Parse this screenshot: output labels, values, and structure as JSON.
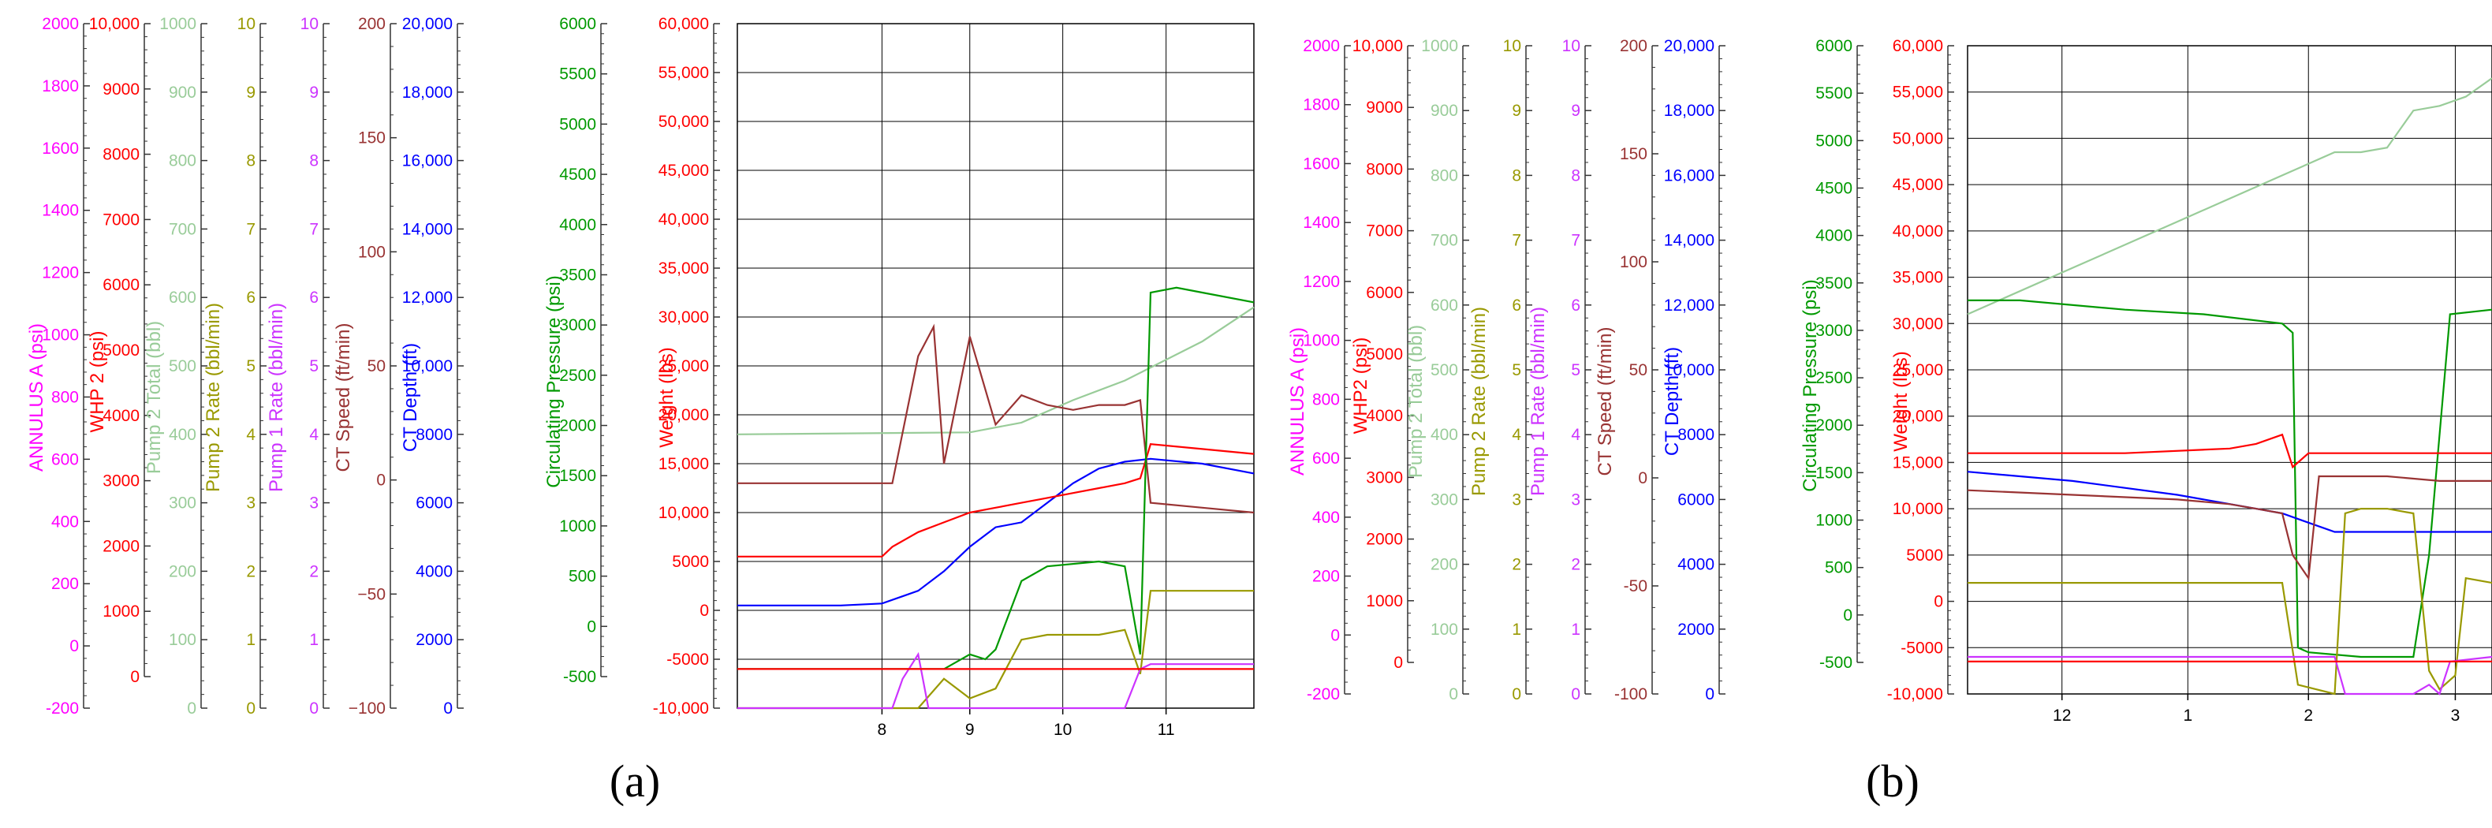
{
  "colors": {
    "annulus": "#ff00ff",
    "whp": "#ff0000",
    "pump2_total": "#99cc99",
    "pump2_rate": "#999900",
    "pump1_rate": "#cc33ff",
    "ct_speed": "#993333",
    "ct_depth": "#0000ff",
    "circ": "#009900",
    "weight": "#ff0000",
    "grid": "#000000"
  },
  "chart_data": [
    {
      "panel_label": "(a)",
      "type": "line",
      "x_ticks": [
        "8",
        "9",
        "10",
        "11"
      ],
      "axes": [
        {
          "key": "annulus",
          "label": "ANNULUS A  (psi)",
          "min": -200,
          "max": 2000,
          "ticks": [
            "2000",
            "1800",
            "1600",
            "1400",
            "1200",
            "1000",
            "800",
            "600",
            "400",
            "200",
            "0",
            "-200"
          ]
        },
        {
          "key": "whp",
          "label": "WHP 2  (psi)",
          "min": -1000,
          "max": 10000,
          "ticks": [
            "10,000",
            "9000",
            "8000",
            "7000",
            "6000",
            "5000",
            "4000",
            "3000",
            "2000",
            "1000",
            "0"
          ]
        },
        {
          "key": "pump2_total",
          "label": "Pump 2 Total  (bbl)",
          "min": 0,
          "max": 1000,
          "ticks": [
            "1000",
            "900",
            "800",
            "700",
            "600",
            "500",
            "400",
            "300",
            "200",
            "100",
            "0"
          ]
        },
        {
          "key": "pump2_rate",
          "label": "Pump 2 Rate  (bbl/min)",
          "min": 0,
          "max": 10,
          "ticks": [
            "10",
            "9",
            "8",
            "7",
            "6",
            "5",
            "4",
            "3",
            "2",
            "1",
            "0"
          ]
        },
        {
          "key": "pump1_rate",
          "label": "Pump 1 Rate  (bbl/min)",
          "min": 0,
          "max": 10,
          "ticks": [
            "10",
            "9",
            "8",
            "7",
            "6",
            "5",
            "4",
            "3",
            "2",
            "1",
            "0"
          ]
        },
        {
          "key": "ct_speed",
          "label": "CT Speed  (ft/min)",
          "min": -100,
          "max": 200,
          "ticks": [
            "200",
            "150",
            "100",
            "50",
            "0",
            "−50",
            "−100"
          ]
        },
        {
          "key": "ct_depth",
          "label": "CT Depth  (ft)",
          "min": 0,
          "max": 20000,
          "ticks": [
            "20,000",
            "18,000",
            "16,000",
            "14,000",
            "12,000",
            "10,000",
            "8000",
            "6000",
            "4000",
            "2000",
            "0"
          ]
        },
        {
          "key": "circ",
          "label": "Circulating Pressure  (psi)",
          "min": -500,
          "max": 6000,
          "ticks": [
            "6000",
            "5500",
            "5000",
            "4500",
            "4000",
            "3500",
            "3000",
            "2500",
            "2000",
            "1500",
            "1000",
            "500",
            "0",
            "-500"
          ]
        },
        {
          "key": "weight",
          "label": "Weight  (lbs)",
          "min": -10000,
          "max": 60000,
          "ticks": [
            "60,000",
            "55,000",
            "50,000",
            "45,000",
            "40,000",
            "35,000",
            "30,000",
            "25,000",
            "20,000",
            "15,000",
            "10,000",
            "5000",
            "0",
            "-5000",
            "-10,000"
          ]
        }
      ],
      "series": [
        {
          "key": "pump2_total",
          "x": [
            0,
            0.45,
            0.55,
            0.65,
            0.75,
            0.9,
            1.0
          ],
          "y": [
            18000,
            18200,
            19200,
            21500,
            23500,
            27500,
            31000
          ]
        },
        {
          "key": "ct_depth",
          "x": [
            0,
            0.1,
            0.2,
            0.28,
            0.35,
            0.4,
            0.45,
            0.5,
            0.55,
            0.6,
            0.65,
            0.7,
            0.75,
            0.8,
            0.9,
            1.0
          ],
          "y": [
            500,
            500,
            500,
            700,
            2000,
            4000,
            6500,
            8500,
            9000,
            11000,
            13000,
            14500,
            15200,
            15500,
            15000,
            14000
          ]
        },
        {
          "key": "weight",
          "x": [
            0,
            0.28,
            0.3,
            0.35,
            0.4,
            0.45,
            0.5,
            0.55,
            0.6,
            0.65,
            0.7,
            0.75,
            0.78,
            0.8,
            0.9,
            1.0
          ],
          "y": [
            5500,
            5500,
            6500,
            8000,
            9000,
            10000,
            10500,
            11000,
            11500,
            12000,
            12500,
            13000,
            13500,
            17000,
            16500,
            16000
          ]
        },
        {
          "key": "ct_speed",
          "x": [
            0,
            0.25,
            0.3,
            0.35,
            0.38,
            0.4,
            0.45,
            0.5,
            0.55,
            0.6,
            0.65,
            0.7,
            0.75,
            0.78,
            0.8,
            0.9,
            1.0
          ],
          "y": [
            13000,
            13000,
            13000,
            26000,
            29000,
            15000,
            28000,
            19000,
            22000,
            21000,
            20500,
            21000,
            21000,
            21500,
            11000,
            10500,
            10000
          ]
        },
        {
          "key": "circ",
          "x": [
            0,
            0.4,
            0.45,
            0.48,
            0.5,
            0.55,
            0.6,
            0.7,
            0.75,
            0.78,
            0.8,
            0.85,
            0.9,
            1.0
          ],
          "y": [
            -6000,
            -6000,
            -4500,
            -5000,
            -4000,
            3000,
            4500,
            5000,
            4500,
            -4500,
            32500,
            33000,
            32500,
            31500
          ]
        },
        {
          "key": "pump2_rate",
          "x": [
            0,
            0.35,
            0.4,
            0.45,
            0.5,
            0.55,
            0.6,
            0.7,
            0.75,
            0.78,
            0.8,
            1.0
          ],
          "y": [
            -10000,
            -10000,
            -7000,
            -9000,
            -8000,
            -3000,
            -2500,
            -2500,
            -2000,
            -6500,
            2000,
            2000
          ]
        },
        {
          "key": "pump1_rate",
          "x": [
            0,
            0.3,
            0.32,
            0.35,
            0.37,
            0.4,
            0.42,
            0.5,
            0.75,
            0.78,
            0.8,
            1.0
          ],
          "y": [
            -10000,
            -10000,
            -7000,
            -4500,
            -10000,
            -10000,
            -10000,
            -10000,
            -10000,
            -6000,
            -5500,
            -5500
          ]
        },
        {
          "key": "whp",
          "x": [
            0,
            0.45,
            0.5,
            1.0
          ],
          "y": [
            -6000,
            -6000,
            -6000,
            -6000
          ]
        }
      ]
    },
    {
      "panel_label": "(b)",
      "type": "line",
      "x_ticks": [
        "12",
        "1",
        "2",
        "3"
      ],
      "axes": [
        {
          "key": "annulus",
          "label": "ANNULUS A  (psi)",
          "min": -200,
          "max": 2000,
          "ticks": [
            "2000",
            "1800",
            "1600",
            "1400",
            "1200",
            "1000",
            "800",
            "600",
            "400",
            "200",
            "0",
            "-200"
          ]
        },
        {
          "key": "whp",
          "label": "WHP2  (psi)",
          "min": -1000,
          "max": 10000,
          "ticks": [
            "10,000",
            "9000",
            "8000",
            "7000",
            "6000",
            "5000",
            "4000",
            "3000",
            "2000",
            "1000",
            "0"
          ]
        },
        {
          "key": "pump2_total",
          "label": "Pump 2 Total  (bbl)",
          "min": 0,
          "max": 1000,
          "ticks": [
            "1000",
            "900",
            "800",
            "700",
            "600",
            "500",
            "400",
            "300",
            "200",
            "100",
            "0"
          ]
        },
        {
          "key": "pump2_rate",
          "label": "Pump 2 Rate  (bbl/min)",
          "min": 0,
          "max": 10,
          "ticks": [
            "10",
            "9",
            "8",
            "7",
            "6",
            "5",
            "4",
            "3",
            "2",
            "1",
            "0"
          ]
        },
        {
          "key": "pump1_rate",
          "label": "Pump 1 Rate  (bbl/min)",
          "min": 0,
          "max": 10,
          "ticks": [
            "10",
            "9",
            "8",
            "7",
            "6",
            "5",
            "4",
            "3",
            "2",
            "1",
            "0"
          ]
        },
        {
          "key": "ct_speed",
          "label": "CT Speed  (ft/min)",
          "min": -100,
          "max": 200,
          "ticks": [
            "200",
            "150",
            "100",
            "50",
            "0",
            "-50",
            "-100"
          ]
        },
        {
          "key": "ct_depth",
          "label": "CT Depth  (ft)",
          "min": 0,
          "max": 20000,
          "ticks": [
            "20,000",
            "18,000",
            "16,000",
            "14,000",
            "12,000",
            "10,000",
            "8000",
            "6000",
            "4000",
            "2000",
            "0"
          ]
        },
        {
          "key": "circ",
          "label": "Circulating Pressure  (psi)",
          "min": -500,
          "max": 6000,
          "ticks": [
            "6000",
            "5500",
            "5000",
            "4500",
            "4000",
            "3500",
            "3000",
            "2500",
            "2000",
            "1500",
            "1000",
            "500",
            "0",
            "-500"
          ]
        },
        {
          "key": "weight",
          "label": "Weight  (lbs)",
          "min": -10000,
          "max": 60000,
          "ticks": [
            "60,000",
            "55,000",
            "50,000",
            "45,000",
            "40,000",
            "35,000",
            "30,000",
            "25,000",
            "20,000",
            "15,000",
            "10,000",
            "5000",
            "0",
            "-5000",
            "-10,000"
          ]
        }
      ],
      "series": [
        {
          "key": "pump2_total",
          "x": [
            0,
            0.2,
            0.4,
            0.6,
            0.7,
            0.75,
            0.8,
            0.85,
            0.9,
            0.95,
            1.0
          ],
          "y": [
            31000,
            36000,
            41000,
            46000,
            48500,
            48500,
            49000,
            53000,
            53500,
            54500,
            56500
          ]
        },
        {
          "key": "circ",
          "x": [
            0,
            0.1,
            0.3,
            0.45,
            0.6,
            0.62,
            0.63,
            0.65,
            0.75,
            0.85,
            0.88,
            0.92,
            1.0
          ],
          "y": [
            32500,
            32500,
            31500,
            31000,
            30000,
            29000,
            -5000,
            -5500,
            -6000,
            -6000,
            5000,
            31000,
            31500
          ]
        },
        {
          "key": "weight",
          "x": [
            0,
            0.1,
            0.3,
            0.5,
            0.55,
            0.6,
            0.62,
            0.65,
            0.75,
            0.8,
            0.85,
            1.0
          ],
          "y": [
            16000,
            16000,
            16000,
            16500,
            17000,
            18000,
            14500,
            16000,
            16000,
            16000,
            16000,
            16000
          ]
        },
        {
          "key": "ct_depth",
          "x": [
            0,
            0.2,
            0.4,
            0.55,
            0.6,
            0.65,
            0.7,
            1.0
          ],
          "y": [
            14000,
            13000,
            11500,
            10000,
            9500,
            8500,
            7500,
            7500
          ]
        },
        {
          "key": "ct_speed",
          "x": [
            0,
            0.2,
            0.4,
            0.5,
            0.55,
            0.6,
            0.62,
            0.65,
            0.67,
            0.7,
            0.8,
            0.9,
            0.95,
            1.0
          ],
          "y": [
            12000,
            11500,
            11000,
            10500,
            10000,
            9500,
            5000,
            2500,
            13500,
            13500,
            13500,
            13000,
            13000,
            13000
          ]
        },
        {
          "key": "pump2_rate",
          "x": [
            0,
            0.6,
            0.63,
            0.7,
            0.72,
            0.75,
            0.8,
            0.85,
            0.88,
            0.9,
            0.93,
            0.95,
            1.0
          ],
          "y": [
            2000,
            2000,
            -9000,
            -10000,
            9500,
            10000,
            10000,
            9500,
            -7500,
            -9500,
            -8000,
            2500,
            2000
          ]
        },
        {
          "key": "pump1_rate",
          "x": [
            0,
            0.5,
            0.7,
            0.72,
            0.75,
            0.85,
            0.88,
            0.9,
            0.92,
            1.0
          ],
          "y": [
            -6000,
            -6000,
            -6000,
            -10000,
            -10000,
            -10000,
            -9000,
            -10000,
            -6500,
            -6000
          ]
        },
        {
          "key": "whp",
          "x": [
            0,
            0.6,
            0.7,
            0.8,
            0.9,
            1.0
          ],
          "y": [
            -6500,
            -6500,
            -6500,
            -6500,
            -6500,
            -6500
          ]
        }
      ]
    }
  ]
}
